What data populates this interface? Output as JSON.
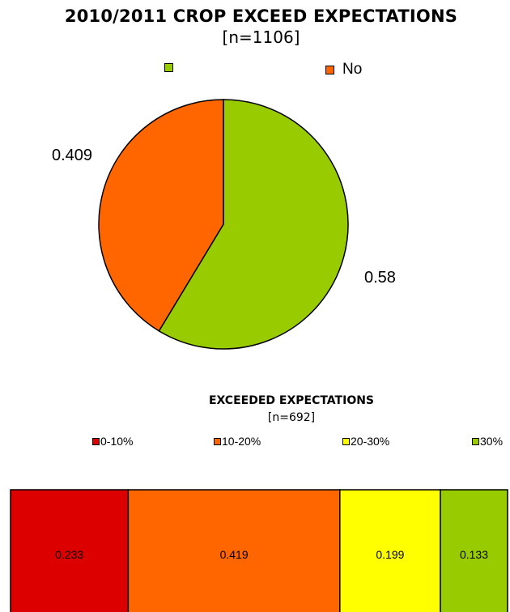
{
  "chart_data": [
    {
      "type": "pie",
      "title": "2010/2011 CROP EXCEED EXPECTATIONS",
      "subtitle": "[n=1106]",
      "series": [
        {
          "name": "",
          "value": 0.58,
          "label": "0.58",
          "color": "#99cc00"
        },
        {
          "name": "No",
          "value": 0.409,
          "label": "0.409",
          "color": "#ff6600"
        }
      ],
      "legend_position": "top"
    },
    {
      "type": "bar",
      "orientation": "horizontal-stacked",
      "title": "EXCEEDED EXPECTATIONS",
      "subtitle": "[n=692]",
      "series": [
        {
          "name": "0-10%",
          "value": 0.233,
          "label": "0.233",
          "color": "#dd0000"
        },
        {
          "name": "10-20%",
          "value": 0.419,
          "label": "0.419",
          "color": "#ff6600"
        },
        {
          "name": "20-30%",
          "value": 0.199,
          "label": "0.199",
          "color": "#ffff00"
        },
        {
          "name": "30%",
          "value": 0.133,
          "label": "0.133",
          "color": "#99cc00"
        }
      ],
      "legend_position": "top"
    }
  ]
}
